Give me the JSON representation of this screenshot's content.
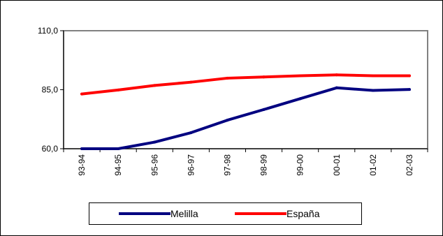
{
  "chart_data": {
    "type": "line",
    "categories": [
      "93-94",
      "94-95",
      "95-96",
      "96-97",
      "97-98",
      "98-99",
      "99-00",
      "00-01",
      "01-02",
      "02-03"
    ],
    "series": [
      {
        "name": "Melilla",
        "color": "#000080",
        "values": [
          60.0,
          60.0,
          62.8,
          66.8,
          72.1,
          76.6,
          81.2,
          85.8,
          84.7,
          85.1
        ]
      },
      {
        "name": "España",
        "color": "#ff0000",
        "values": [
          83.2,
          84.9,
          86.8,
          88.2,
          89.9,
          90.4,
          90.9,
          91.3,
          90.9,
          90.9
        ]
      }
    ],
    "yticks": [
      "110,0",
      "85,0",
      "60,0"
    ],
    "ylim": [
      60,
      110
    ],
    "grid": false,
    "legend_position": "bottom",
    "plot_background": "#ffffff",
    "plot_border_color": "#808080"
  }
}
